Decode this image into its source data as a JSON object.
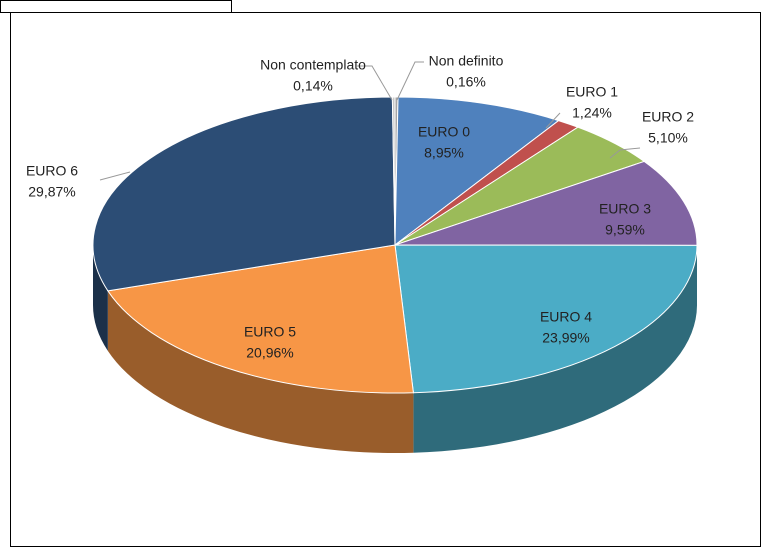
{
  "chart_data": {
    "type": "pie",
    "categories": [
      "Non definito",
      "EURO 0",
      "EURO 1",
      "EURO 2",
      "EURO 3",
      "EURO 4",
      "EURO 5",
      "EURO 6",
      "Non contemplato"
    ],
    "values": [
      0.16,
      8.95,
      1.24,
      5.1,
      9.59,
      23.99,
      20.96,
      29.87,
      0.14
    ],
    "value_labels": [
      "0,16%",
      "8,95%",
      "1,24%",
      "5,10%",
      "9,59%",
      "23,99%",
      "20,96%",
      "29,87%",
      "0,14%"
    ],
    "colors": [
      "#a6a6a6",
      "#4f81bd",
      "#c0504d",
      "#9bbb59",
      "#8064a2",
      "#4bacc6",
      "#f79646",
      "#2c4d75",
      "#c8c8c8"
    ]
  }
}
